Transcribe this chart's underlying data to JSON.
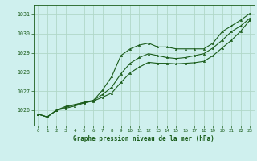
{
  "title": "Graphe pression niveau de la mer (hPa)",
  "background_color": "#cff0ee",
  "grid_color": "#b0d8c8",
  "line_color": "#1a5c1a",
  "x_ticks": [
    0,
    1,
    2,
    3,
    4,
    5,
    6,
    7,
    8,
    9,
    10,
    11,
    12,
    13,
    14,
    15,
    16,
    17,
    18,
    19,
    20,
    21,
    22,
    23
  ],
  "y_ticks": [
    1026,
    1027,
    1028,
    1029,
    1030,
    1031
  ],
  "ylim": [
    1025.2,
    1031.5
  ],
  "xlim": [
    -0.5,
    23.5
  ],
  "series": {
    "line1": [
      1025.8,
      1025.65,
      1026.0,
      1026.2,
      1026.3,
      1026.4,
      1026.5,
      1027.05,
      1027.75,
      1028.85,
      1029.2,
      1029.4,
      1029.5,
      1029.3,
      1029.3,
      1029.2,
      1029.2,
      1029.2,
      1029.2,
      1029.5,
      1030.1,
      1030.4,
      1030.7,
      1031.05
    ],
    "line2": [
      1025.8,
      1025.65,
      1026.0,
      1026.15,
      1026.28,
      1026.42,
      1026.52,
      1026.82,
      1027.2,
      1027.9,
      1028.45,
      1028.75,
      1028.95,
      1028.85,
      1028.75,
      1028.7,
      1028.75,
      1028.85,
      1028.95,
      1029.25,
      1029.65,
      1030.1,
      1030.4,
      1030.8
    ],
    "line3": [
      1025.8,
      1025.65,
      1026.0,
      1026.1,
      1026.22,
      1026.38,
      1026.48,
      1026.68,
      1026.9,
      1027.45,
      1027.95,
      1028.25,
      1028.5,
      1028.45,
      1028.45,
      1028.42,
      1028.45,
      1028.48,
      1028.55,
      1028.85,
      1029.25,
      1029.65,
      1030.12,
      1030.7
    ]
  }
}
